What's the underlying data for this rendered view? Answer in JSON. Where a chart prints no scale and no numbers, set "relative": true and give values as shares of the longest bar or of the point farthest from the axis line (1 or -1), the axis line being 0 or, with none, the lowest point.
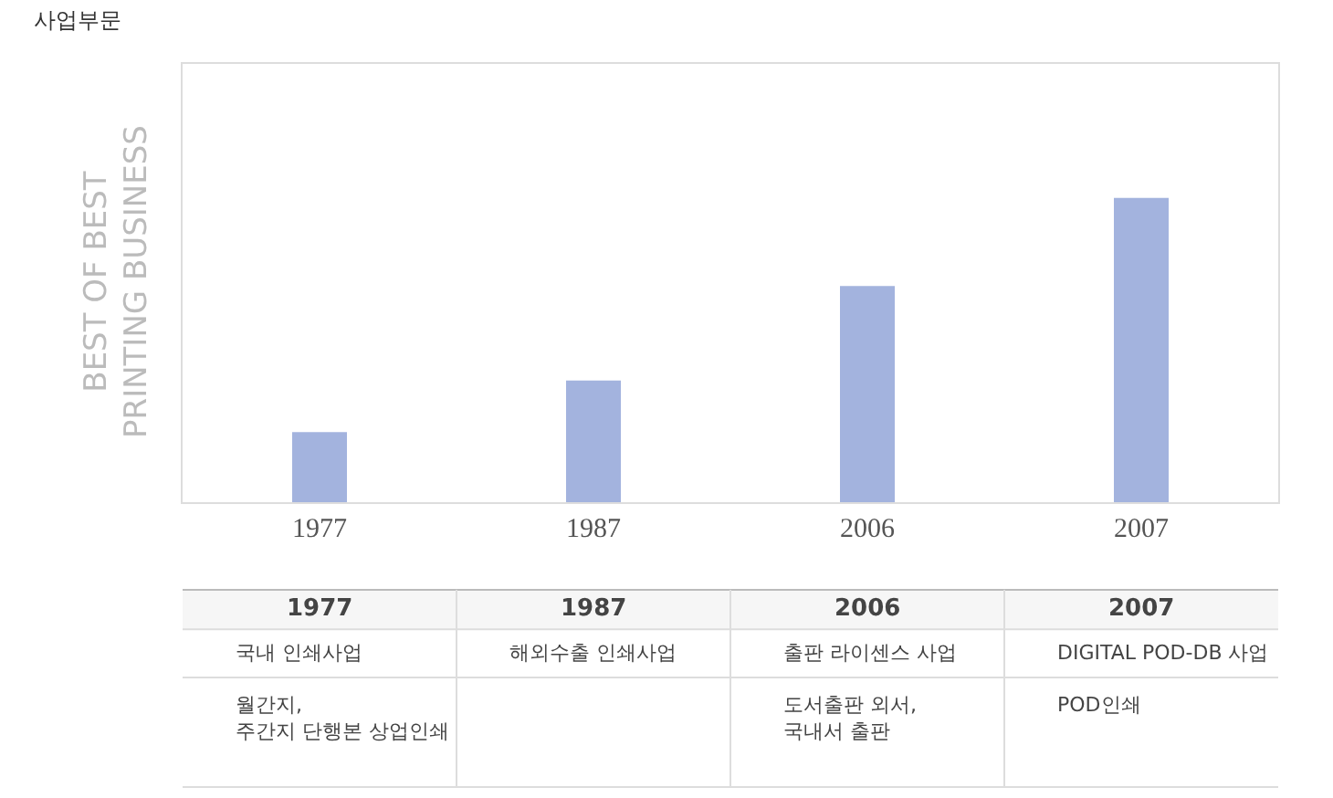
{
  "chart_data": {
    "type": "bar",
    "title": "사업부문",
    "ylabel": "BEST OF BEST\nPRINTING BUSINESS",
    "categories": [
      "1977",
      "1987",
      "2006",
      "2007"
    ],
    "values": [
      0.23,
      0.4,
      0.71,
      1
    ],
    "color": "#a3b3de",
    "relative": true,
    "annotations": [
      "국내 인쇄사업\n\n월간지,\n주간지 단행본 상업인쇄",
      "해외수출 인쇄사업",
      "출판 라이센스 사업\n\n도서출판 외서,\n국내서 출판",
      "DIGITAL POD-DB 사업\n\nPOD인쇄"
    ]
  }
}
